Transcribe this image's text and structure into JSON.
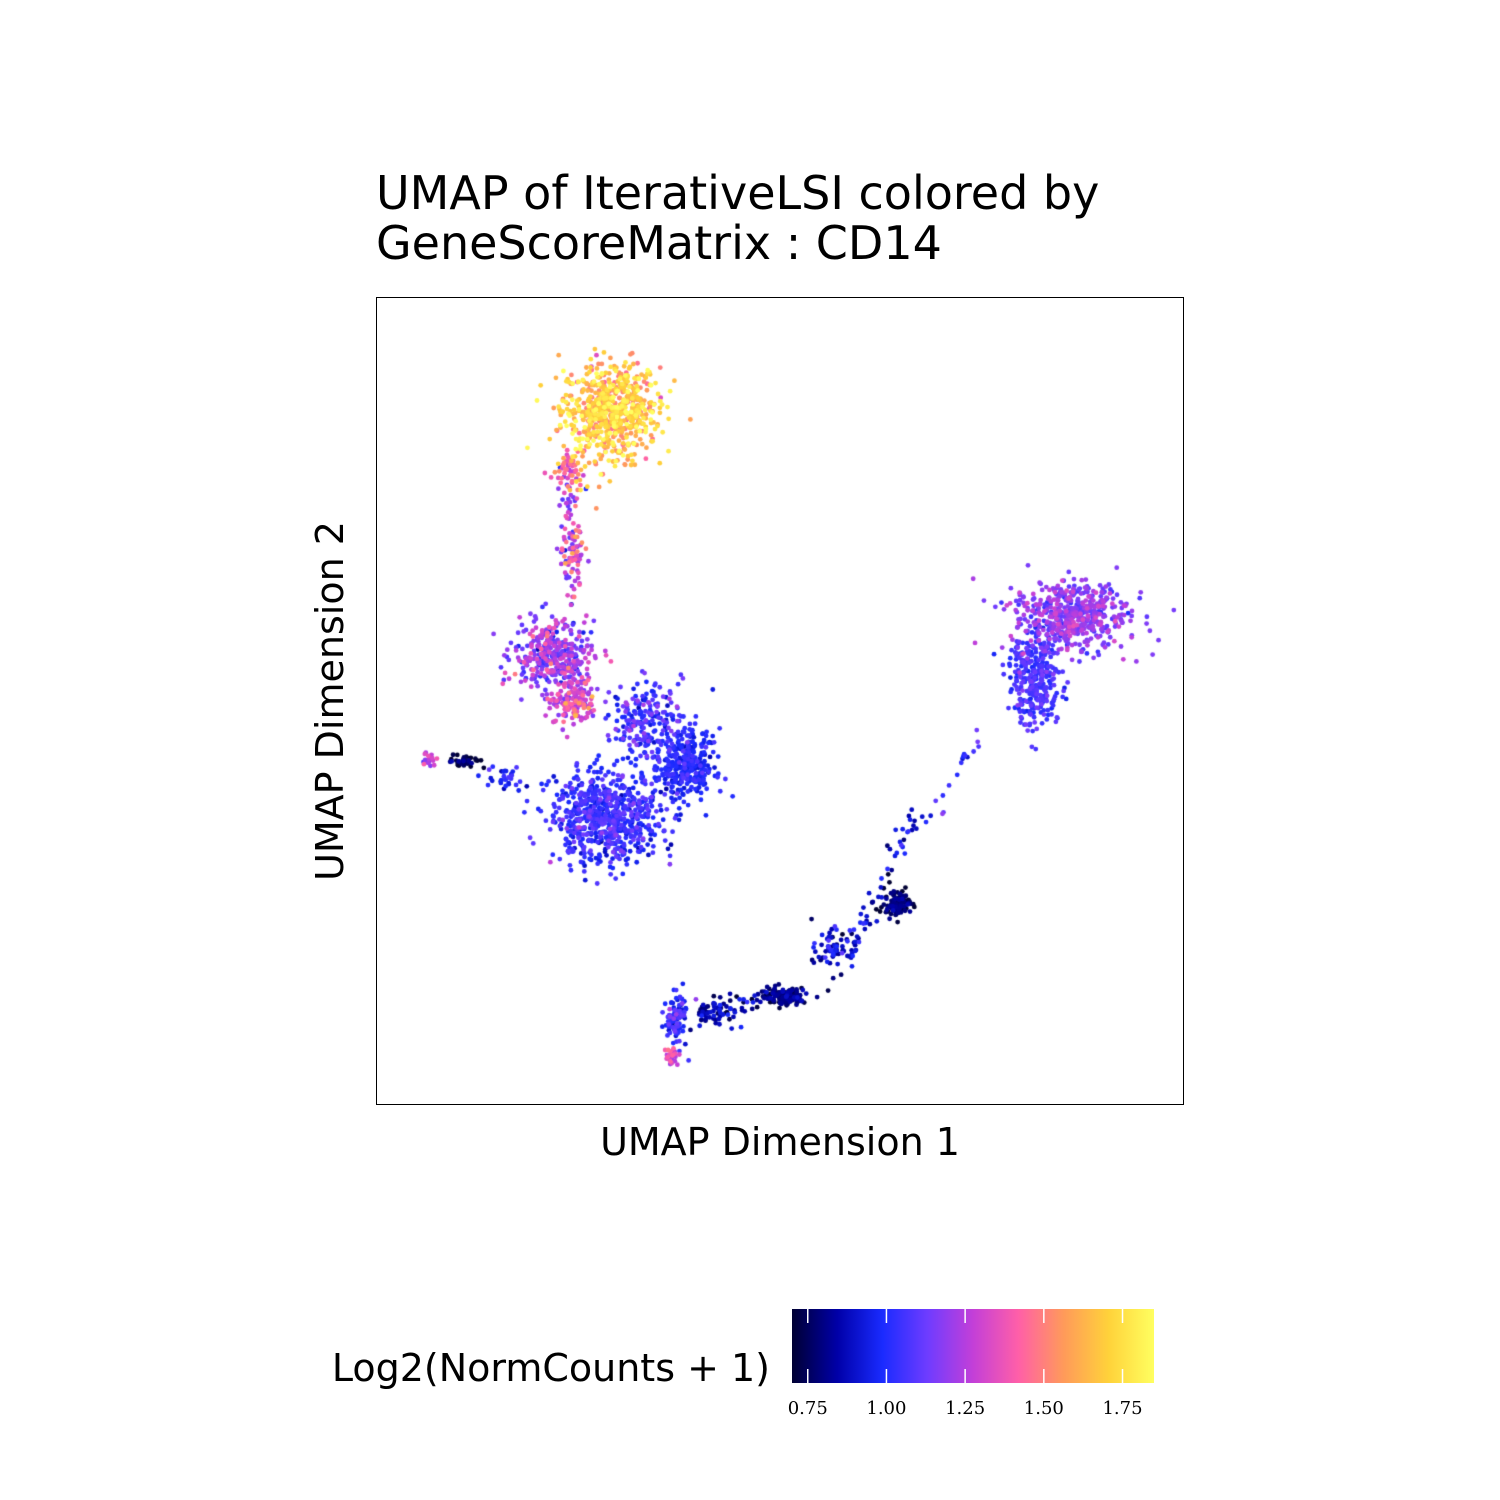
{
  "chart_data": {
    "type": "scatter",
    "title_line1": "UMAP of IterativeLSI colored by",
    "title_line2": "GeneScoreMatrix : CD14",
    "xlabel": "UMAP Dimension 1",
    "ylabel": "UMAP Dimension 2",
    "xlim": [
      0,
      100
    ],
    "ylim": [
      0,
      100
    ],
    "grid": false,
    "legend": {
      "title": "Log2(NormCounts + 1)",
      "placement": "bottom",
      "range": [
        0.7,
        1.85
      ],
      "ticks": [
        0.75,
        1.0,
        1.25,
        1.5,
        1.75
      ],
      "tick_labels": [
        "0.75",
        "1.00",
        "1.25",
        "1.50",
        "1.75"
      ],
      "colors": [
        "#000033",
        "#0000A8",
        "#1A2BFF",
        "#6F3CFF",
        "#C33FD8",
        "#FF5FA8",
        "#FF9A5A",
        "#FFD23A",
        "#FFFF60"
      ]
    },
    "clusters": [
      {
        "cx": 29,
        "cy": 86,
        "sx": 5.5,
        "sy": 5.5,
        "n": 700,
        "value": 1.65,
        "spread": 0.12
      },
      {
        "cx": 24,
        "cy": 78,
        "sx": 1.5,
        "sy": 2.5,
        "n": 60,
        "value": 1.45,
        "spread": 0.15
      },
      {
        "cx": 24.5,
        "cy": 68.5,
        "sx": 1.2,
        "sy": 3.0,
        "n": 50,
        "value": 1.3,
        "spread": 0.15
      },
      {
        "cx": 22,
        "cy": 55.5,
        "sx": 4.5,
        "sy": 4.0,
        "n": 350,
        "value": 1.17,
        "spread": 0.12
      },
      {
        "cx": 24.5,
        "cy": 50,
        "sx": 2.5,
        "sy": 3.0,
        "n": 150,
        "value": 1.3,
        "spread": 0.12
      },
      {
        "cx": 28.5,
        "cy": 35.5,
        "sx": 6.0,
        "sy": 5.0,
        "n": 700,
        "value": 1.02,
        "spread": 0.07
      },
      {
        "cx": 38,
        "cy": 42,
        "sx": 3.5,
        "sy": 4.0,
        "n": 350,
        "value": 0.98,
        "spread": 0.05
      },
      {
        "cx": 33.5,
        "cy": 48,
        "sx": 4.0,
        "sy": 4.0,
        "n": 200,
        "value": 1.05,
        "spread": 0.08
      },
      {
        "cx": 11,
        "cy": 42.5,
        "sx": 1.8,
        "sy": 0.8,
        "n": 40,
        "value": 0.75,
        "spread": 0.06
      },
      {
        "cx": 16,
        "cy": 40.5,
        "sx": 2.5,
        "sy": 1.5,
        "n": 30,
        "value": 0.95,
        "spread": 0.08
      },
      {
        "cx": 6.5,
        "cy": 43,
        "sx": 0.8,
        "sy": 0.8,
        "n": 20,
        "value": 1.25,
        "spread": 0.1
      },
      {
        "cx": 86,
        "cy": 60.5,
        "sx": 6.5,
        "sy": 4.0,
        "n": 550,
        "value": 1.17,
        "spread": 0.07
      },
      {
        "cx": 81.5,
        "cy": 52.5,
        "sx": 3.0,
        "sy": 5.0,
        "n": 300,
        "value": 1.05,
        "spread": 0.05
      },
      {
        "cx": 64.5,
        "cy": 25,
        "sx": 1.5,
        "sy": 1.5,
        "n": 110,
        "value": 0.76,
        "spread": 0.05
      },
      {
        "cx": 50.5,
        "cy": 13.5,
        "sx": 3.0,
        "sy": 1.0,
        "n": 140,
        "value": 0.78,
        "spread": 0.05
      },
      {
        "cx": 56.5,
        "cy": 19.5,
        "sx": 2.0,
        "sy": 2.0,
        "n": 60,
        "value": 0.9,
        "spread": 0.08
      },
      {
        "cx": 37,
        "cy": 10.5,
        "sx": 1.2,
        "sy": 3.0,
        "n": 100,
        "value": 1.02,
        "spread": 0.08
      },
      {
        "cx": 36.5,
        "cy": 6,
        "sx": 0.8,
        "sy": 1.0,
        "n": 25,
        "value": 1.3,
        "spread": 0.1
      },
      {
        "cx": 42,
        "cy": 11.5,
        "sx": 2.5,
        "sy": 1.5,
        "n": 50,
        "value": 0.85,
        "spread": 0.08
      }
    ],
    "paths": [
      {
        "from": [
          67,
          36
        ],
        "to": [
          57,
          16
        ],
        "n": 60,
        "value": 0.9,
        "spread": 0.1
      },
      {
        "from": [
          75,
          46
        ],
        "to": [
          68,
          35
        ],
        "n": 18,
        "value": 1.0,
        "spread": 0.08
      },
      {
        "from": [
          47,
          13
        ],
        "to": [
          39,
          11
        ],
        "n": 35,
        "value": 0.85,
        "spread": 0.1
      },
      {
        "from": [
          23.5,
          75
        ],
        "to": [
          24.5,
          61
        ],
        "n": 45,
        "value": 1.25,
        "spread": 0.15
      }
    ]
  }
}
